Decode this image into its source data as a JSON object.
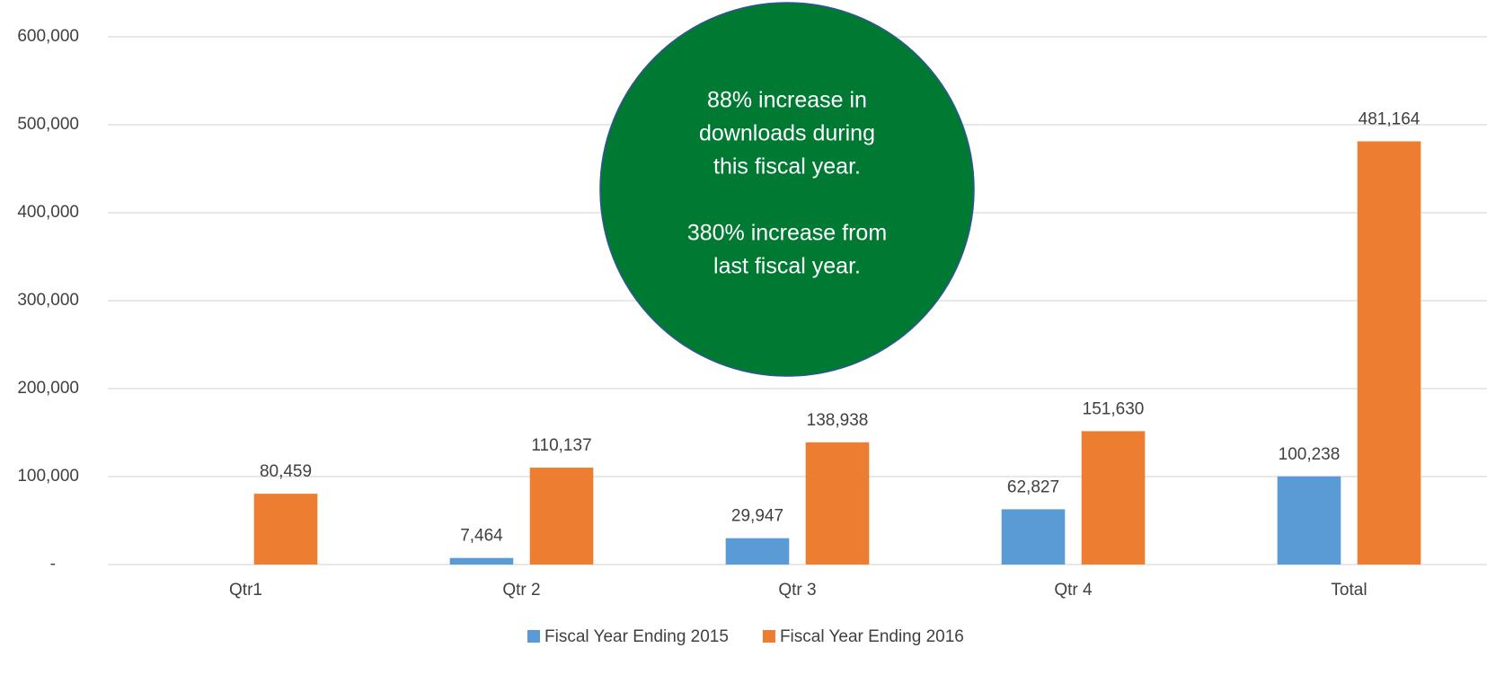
{
  "chart_data": {
    "type": "bar",
    "categories": [
      "Qtr1",
      "Qtr 2",
      "Qtr 3",
      "Qtr 4",
      "Total"
    ],
    "series": [
      {
        "name": "Fiscal Year Ending 2015",
        "color": "#5b9bd5",
        "values": [
          null,
          7464,
          29947,
          62827,
          100238
        ],
        "value_labels": [
          null,
          "7,464",
          "29,947",
          "62,827",
          "100,238"
        ]
      },
      {
        "name": "Fiscal Year Ending 2016",
        "color": "#ed7d31",
        "values": [
          80459,
          110137,
          138938,
          151630,
          481164
        ],
        "value_labels": [
          "80,459",
          "110,137",
          "138,938",
          "151,630",
          "481,164"
        ]
      }
    ],
    "ylim": [
      0,
      600000
    ],
    "yticks": [
      {
        "value": 0,
        "label": "-"
      },
      {
        "value": 100000,
        "label": "100,000"
      },
      {
        "value": 200000,
        "label": "200,000"
      },
      {
        "value": 300000,
        "label": "300,000"
      },
      {
        "value": 400000,
        "label": "400,000"
      },
      {
        "value": 500000,
        "label": "500,000"
      },
      {
        "value": 600000,
        "label": "600,000"
      }
    ],
    "grid": true,
    "legend": "bottom",
    "annotation": {
      "color": "#007a33",
      "lines": [
        "88% increase in",
        "downloads during",
        "this fiscal year.",
        "380% increase from",
        "last fiscal year."
      ]
    }
  }
}
